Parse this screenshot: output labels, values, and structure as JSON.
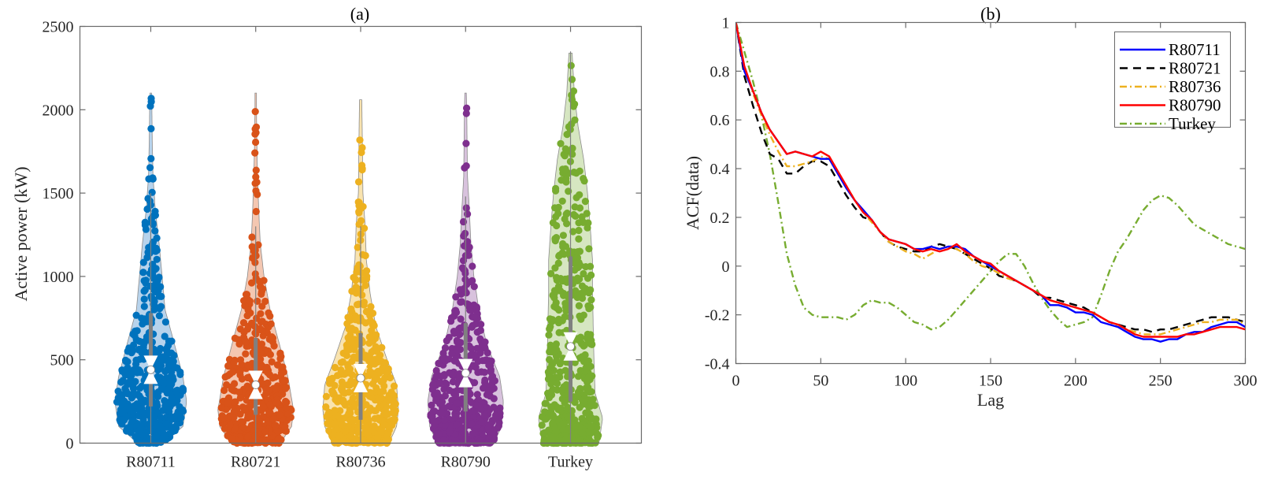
{
  "chart_data": [
    {
      "type": "violin",
      "panel": "(a)",
      "title": "(a)",
      "xlabel": "",
      "ylabel": "Active power (kW)",
      "ylim": [
        0,
        2500
      ],
      "yticks": [
        0,
        500,
        1000,
        1500,
        2000,
        2500
      ],
      "grid": false,
      "categories": [
        "R80711",
        "R80721",
        "R80736",
        "R80790",
        "Turkey"
      ],
      "series": [
        {
          "name": "R80711",
          "color": "#0072BD",
          "fill": "#B7D3EC",
          "min": 0,
          "max": 2110,
          "q1": 220,
          "median": 440,
          "q3": 780,
          "whisker_low": 0,
          "whisker_high": 1500,
          "density_profile": [
            [
              0,
              0.35
            ],
            [
              100,
              0.85
            ],
            [
              250,
              0.95
            ],
            [
              400,
              0.85
            ],
            [
              600,
              0.62
            ],
            [
              800,
              0.38
            ],
            [
              1000,
              0.3
            ],
            [
              1200,
              0.22
            ],
            [
              1400,
              0.12
            ],
            [
              1600,
              0.06
            ],
            [
              1800,
              0.04
            ],
            [
              2000,
              0.03
            ],
            [
              2110,
              0.02
            ]
          ]
        },
        {
          "name": "R80721",
          "color": "#D95319",
          "fill": "#F4C7B1",
          "min": 0,
          "max": 2100,
          "q1": 170,
          "median": 350,
          "q3": 630,
          "whisker_low": 0,
          "whisker_high": 1300,
          "density_profile": [
            [
              0,
              0.65
            ],
            [
              100,
              0.95
            ],
            [
              200,
              1.0
            ],
            [
              400,
              0.85
            ],
            [
              600,
              0.62
            ],
            [
              800,
              0.38
            ],
            [
              1000,
              0.22
            ],
            [
              1200,
              0.12
            ],
            [
              1400,
              0.08
            ],
            [
              1600,
              0.05
            ],
            [
              1800,
              0.03
            ],
            [
              2000,
              0.02
            ],
            [
              2100,
              0.02
            ]
          ]
        },
        {
          "name": "R80736",
          "color": "#EDB120",
          "fill": "#F9E3AE",
          "min": 0,
          "max": 2060,
          "q1": 140,
          "median": 390,
          "q3": 660,
          "whisker_low": 0,
          "whisker_high": 1300,
          "density_profile": [
            [
              0,
              0.75
            ],
            [
              100,
              0.95
            ],
            [
              200,
              1.0
            ],
            [
              350,
              0.95
            ],
            [
              500,
              0.7
            ],
            [
              700,
              0.4
            ],
            [
              900,
              0.25
            ],
            [
              1100,
              0.15
            ],
            [
              1300,
              0.12
            ],
            [
              1500,
              0.06
            ],
            [
              1700,
              0.05
            ],
            [
              1900,
              0.04
            ],
            [
              2060,
              0.03
            ]
          ]
        },
        {
          "name": "R80790",
          "color": "#7E2F8E",
          "fill": "#D8C2DD",
          "min": 0,
          "max": 2100,
          "q1": 190,
          "median": 420,
          "q3": 720,
          "whisker_low": 0,
          "whisker_high": 1480,
          "density_profile": [
            [
              0,
              0.75
            ],
            [
              100,
              0.95
            ],
            [
              250,
              1.0
            ],
            [
              400,
              0.9
            ],
            [
              600,
              0.55
            ],
            [
              800,
              0.35
            ],
            [
              1000,
              0.22
            ],
            [
              1200,
              0.14
            ],
            [
              1400,
              0.1
            ],
            [
              1600,
              0.05
            ],
            [
              1800,
              0.04
            ],
            [
              2000,
              0.03
            ],
            [
              2100,
              0.02
            ]
          ]
        },
        {
          "name": "Turkey",
          "color": "#77AC30",
          "fill": "#D6E6C1",
          "min": 0,
          "max": 2350,
          "q1": 250,
          "median": 580,
          "q3": 1120,
          "whisker_low": 0,
          "whisker_high": 2350,
          "density_profile": [
            [
              0,
              0.75
            ],
            [
              150,
              0.85
            ],
            [
              300,
              0.65
            ],
            [
              500,
              0.62
            ],
            [
              700,
              0.6
            ],
            [
              900,
              0.58
            ],
            [
              1100,
              0.58
            ],
            [
              1300,
              0.52
            ],
            [
              1500,
              0.45
            ],
            [
              1700,
              0.35
            ],
            [
              1900,
              0.2
            ],
            [
              2100,
              0.1
            ],
            [
              2350,
              0.04
            ]
          ]
        }
      ]
    },
    {
      "type": "line",
      "panel": "(b)",
      "title": "(b)",
      "xlabel": "Lag",
      "ylabel": "ACF(data)",
      "xlim": [
        0,
        300
      ],
      "ylim": [
        -0.4,
        1
      ],
      "xticks": [
        0,
        50,
        100,
        150,
        200,
        250,
        300
      ],
      "yticks": [
        -0.4,
        -0.2,
        0,
        0.2,
        0.4,
        0.6,
        0.8,
        1
      ],
      "ytick_labels": [
        "-0.4",
        "-0.2",
        "0",
        "0.2",
        "0.4",
        "0.6",
        "0.8",
        "1"
      ],
      "grid": false,
      "legend_position": "top-right",
      "x": [
        0,
        5,
        10,
        15,
        20,
        25,
        30,
        35,
        40,
        45,
        50,
        55,
        60,
        65,
        70,
        75,
        80,
        85,
        90,
        95,
        100,
        105,
        110,
        115,
        120,
        125,
        130,
        135,
        140,
        145,
        150,
        155,
        160,
        165,
        170,
        175,
        180,
        185,
        190,
        195,
        200,
        205,
        210,
        215,
        220,
        225,
        230,
        235,
        240,
        245,
        250,
        255,
        260,
        265,
        270,
        275,
        280,
        285,
        290,
        295,
        300
      ],
      "series": [
        {
          "name": "R80711",
          "color": "#0000FF",
          "style": "solid",
          "values": [
            1.0,
            0.8,
            0.72,
            0.63,
            0.56,
            0.51,
            0.46,
            0.47,
            0.46,
            0.45,
            0.44,
            0.44,
            0.38,
            0.32,
            0.27,
            0.23,
            0.19,
            0.14,
            0.11,
            0.1,
            0.09,
            0.07,
            0.07,
            0.08,
            0.07,
            0.08,
            0.08,
            0.07,
            0.04,
            0.02,
            0.0,
            -0.02,
            -0.04,
            -0.06,
            -0.08,
            -0.1,
            -0.12,
            -0.16,
            -0.16,
            -0.17,
            -0.19,
            -0.19,
            -0.2,
            -0.23,
            -0.24,
            -0.25,
            -0.27,
            -0.29,
            -0.3,
            -0.3,
            -0.31,
            -0.3,
            -0.3,
            -0.28,
            -0.27,
            -0.27,
            -0.25,
            -0.24,
            -0.23,
            -0.23,
            -0.25
          ]
        },
        {
          "name": "R80721",
          "color": "#000000",
          "style": "dashed",
          "values": [
            1.0,
            0.78,
            0.66,
            0.55,
            0.46,
            0.44,
            0.38,
            0.38,
            0.41,
            0.43,
            0.43,
            0.41,
            0.35,
            0.29,
            0.24,
            0.2,
            0.19,
            0.14,
            0.1,
            0.08,
            0.07,
            0.06,
            0.06,
            0.08,
            0.09,
            0.08,
            0.07,
            0.05,
            0.03,
            0.01,
            -0.01,
            -0.04,
            -0.05,
            -0.06,
            -0.08,
            -0.1,
            -0.13,
            -0.13,
            -0.14,
            -0.15,
            -0.16,
            -0.17,
            -0.19,
            -0.21,
            -0.23,
            -0.24,
            -0.25,
            -0.26,
            -0.26,
            -0.27,
            -0.26,
            -0.26,
            -0.25,
            -0.24,
            -0.23,
            -0.22,
            -0.21,
            -0.21,
            -0.21,
            -0.22,
            -0.23
          ]
        },
        {
          "name": "R80736",
          "color": "#EDB120",
          "style": "dashdot",
          "values": [
            1.0,
            0.82,
            0.71,
            0.62,
            0.54,
            0.47,
            0.41,
            0.41,
            0.42,
            0.43,
            0.45,
            0.44,
            0.38,
            0.33,
            0.27,
            0.22,
            0.18,
            0.14,
            0.1,
            0.08,
            0.06,
            0.05,
            0.03,
            0.05,
            0.07,
            0.08,
            0.07,
            0.05,
            0.02,
            0.0,
            -0.01,
            -0.03,
            -0.05,
            -0.06,
            -0.08,
            -0.1,
            -0.12,
            -0.14,
            -0.15,
            -0.16,
            -0.17,
            -0.18,
            -0.19,
            -0.21,
            -0.23,
            -0.25,
            -0.26,
            -0.27,
            -0.28,
            -0.28,
            -0.28,
            -0.27,
            -0.26,
            -0.25,
            -0.24,
            -0.23,
            -0.23,
            -0.22,
            -0.22,
            -0.22,
            -0.24
          ]
        },
        {
          "name": "R80790",
          "color": "#FF0000",
          "style": "solid",
          "values": [
            1.0,
            0.82,
            0.72,
            0.63,
            0.56,
            0.51,
            0.46,
            0.47,
            0.46,
            0.45,
            0.47,
            0.45,
            0.39,
            0.33,
            0.27,
            0.22,
            0.19,
            0.14,
            0.11,
            0.1,
            0.09,
            0.07,
            0.06,
            0.07,
            0.06,
            0.07,
            0.09,
            0.06,
            0.04,
            0.02,
            0.01,
            -0.02,
            -0.04,
            -0.06,
            -0.08,
            -0.1,
            -0.12,
            -0.14,
            -0.15,
            -0.16,
            -0.17,
            -0.18,
            -0.19,
            -0.21,
            -0.23,
            -0.24,
            -0.26,
            -0.28,
            -0.29,
            -0.29,
            -0.29,
            -0.29,
            -0.29,
            -0.28,
            -0.28,
            -0.27,
            -0.26,
            -0.25,
            -0.25,
            -0.25,
            -0.26
          ]
        },
        {
          "name": "Turkey",
          "color": "#77AC30",
          "style": "dashdot",
          "values": [
            1.0,
            0.88,
            0.76,
            0.62,
            0.46,
            0.26,
            0.05,
            -0.08,
            -0.17,
            -0.2,
            -0.21,
            -0.21,
            -0.21,
            -0.22,
            -0.2,
            -0.16,
            -0.14,
            -0.15,
            -0.15,
            -0.17,
            -0.2,
            -0.23,
            -0.24,
            -0.26,
            -0.25,
            -0.22,
            -0.18,
            -0.14,
            -0.1,
            -0.06,
            -0.02,
            0.02,
            0.05,
            0.05,
            0.0,
            -0.07,
            -0.13,
            -0.18,
            -0.22,
            -0.25,
            -0.24,
            -0.23,
            -0.21,
            -0.12,
            -0.02,
            0.06,
            0.11,
            0.17,
            0.23,
            0.27,
            0.29,
            0.28,
            0.25,
            0.21,
            0.17,
            0.15,
            0.13,
            0.11,
            0.09,
            0.08,
            0.07
          ]
        }
      ]
    }
  ]
}
